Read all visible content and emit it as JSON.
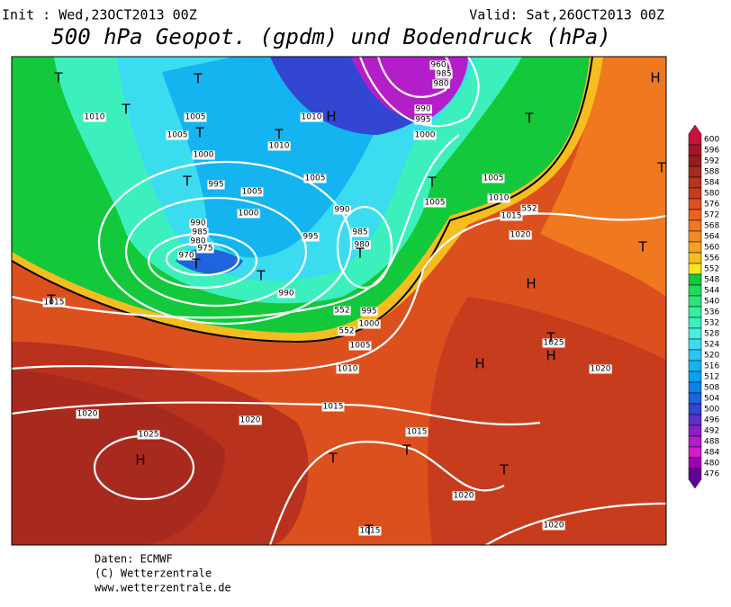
{
  "header": {
    "init": "Init : Wed,23OCT2013 00Z",
    "valid": "Valid: Sat,26OCT2013 00Z",
    "title": "500 hPa Geopot. (gpdm) und Bodendruck (hPa)"
  },
  "legend": {
    "labels": [
      "600",
      "596",
      "592",
      "588",
      "584",
      "580",
      "576",
      "572",
      "568",
      "564",
      "560",
      "556",
      "552",
      "548",
      "544",
      "540",
      "536",
      "532",
      "528",
      "524",
      "520",
      "516",
      "512",
      "508",
      "504",
      "500",
      "496",
      "492",
      "488",
      "484",
      "480",
      "476"
    ],
    "colors": [
      "#c8143c",
      "#aa1428",
      "#961e1e",
      "#a82a1e",
      "#b8321e",
      "#c83c1e",
      "#dc501e",
      "#e8641e",
      "#f0781e",
      "#f58c1e",
      "#f5a01e",
      "#f5be1e",
      "#f5e61e",
      "#14c83c",
      "#1edc5a",
      "#28e678",
      "#32f09b",
      "#3cf0be",
      "#46f0dc",
      "#3cdcf0",
      "#28c8f0",
      "#14b4f0",
      "#0aa0f0",
      "#0a82e6",
      "#1e64dc",
      "#3246d2",
      "#5a32c8",
      "#8c1ec8",
      "#b41ec8",
      "#d21ec8",
      "#a000b4",
      "#640096"
    ]
  },
  "map": {
    "isobar_labels": [
      "1010",
      "1005",
      "1005",
      "1000",
      "1010",
      "1010",
      "995",
      "1005",
      "1000",
      "990",
      "985",
      "980",
      "975",
      "970",
      "995",
      "990",
      "985",
      "980",
      "990",
      "995",
      "1000",
      "1005",
      "1010",
      "1015",
      "1020",
      "1020",
      "1025",
      "1015",
      "1015",
      "1020",
      "1020",
      "1015",
      "1005",
      "1005",
      "1005",
      "1010",
      "1015",
      "1020",
      "1025",
      "1020",
      "1000",
      "995",
      "990",
      "985",
      "980",
      "960",
      "552",
      "552",
      "552"
    ],
    "pressure_centers": [
      "T",
      "T",
      "T",
      "T",
      "T",
      "T",
      "T",
      "T",
      "T",
      "T",
      "T",
      "T",
      "T",
      "T",
      "T",
      "T",
      "T",
      "T",
      "T",
      "H",
      "H",
      "H",
      "H",
      "H",
      "H"
    ]
  },
  "footer": {
    "lines": [
      "Daten: ECMWF",
      "(C) Wetterzentrale",
      "www.wetterzentrale.de"
    ]
  }
}
